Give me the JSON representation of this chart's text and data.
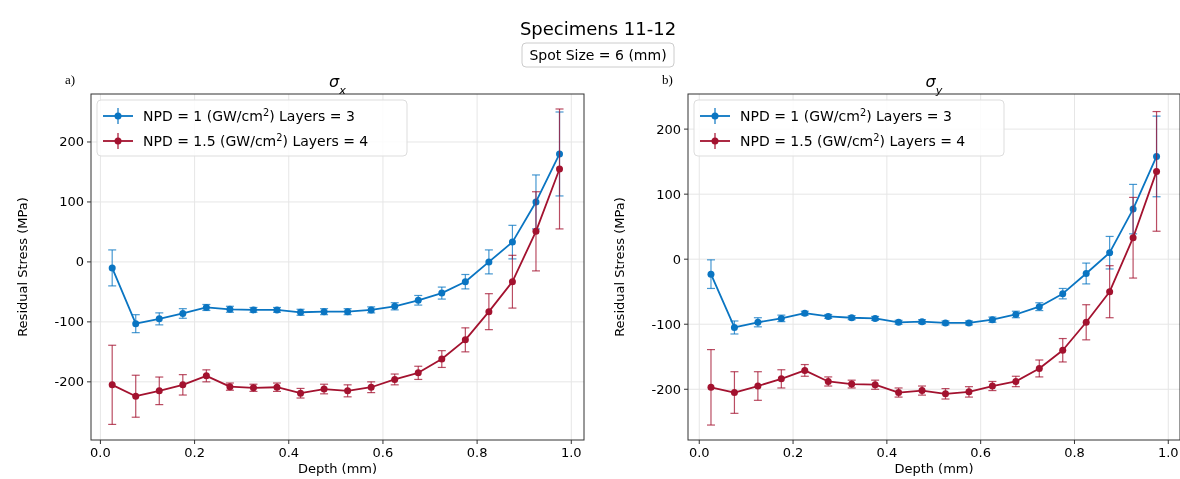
{
  "chart_data": [
    {
      "type": "line",
      "title": "σ$_{x}$",
      "annotations": [
        "Specimens 11-12",
        "Spot Size = 6 (mm)",
        "a)"
      ],
      "xlabel": "Depth (mm)",
      "ylabel": "Residual Stress (MPa)",
      "x": [
        0.025,
        0.075,
        0.125,
        0.175,
        0.225,
        0.275,
        0.325,
        0.375,
        0.425,
        0.475,
        0.525,
        0.575,
        0.625,
        0.675,
        0.725,
        0.775,
        0.825,
        0.875,
        0.925,
        0.975
      ],
      "xlim": [
        -0.02,
        1.027
      ],
      "ylim": [
        -297,
        280
      ],
      "xticks": [
        {
          "value": 0,
          "label": "0.0"
        },
        {
          "value": 0.2,
          "label": "0.2"
        },
        {
          "value": 0.4,
          "label": "0.4"
        },
        {
          "value": 0.6,
          "label": "0.6"
        },
        {
          "value": 0.8,
          "label": "0.8"
        },
        {
          "value": 1,
          "label": "1.0"
        }
      ],
      "yticks": [
        -200,
        -100,
        0,
        100,
        200
      ],
      "grid": true,
      "legend": "top left",
      "marker": "circle",
      "series": [
        {
          "name": "NPD = 1 (GW/cm$^{2}$) Layers = 3",
          "color": "#0a75c2",
          "values": [
            -10,
            -103,
            -95,
            -86,
            -76,
            -79,
            -80,
            -80,
            -84,
            -83,
            -83,
            -80,
            -74,
            -64,
            -52,
            -33,
            0,
            33,
            100,
            180
          ],
          "errors": [
            30,
            15,
            10,
            8,
            5,
            5,
            4,
            4,
            5,
            5,
            5,
            5,
            6,
            8,
            10,
            12,
            20,
            28,
            45,
            70
          ]
        },
        {
          "name": "NPD = 1.5 (GW/cm$^{2}$) Layers = 4",
          "color": "#a3122f",
          "values": [
            -205,
            -224,
            -215,
            -205,
            -190,
            -208,
            -210,
            -209,
            -219,
            -212,
            -215,
            -209,
            -196,
            -185,
            -162,
            -130,
            -83,
            -33,
            51,
            155
          ],
          "errors": [
            66,
            35,
            23,
            17,
            10,
            6,
            6,
            7,
            8,
            8,
            10,
            9,
            9,
            11,
            14,
            20,
            30,
            44,
            66,
            100
          ]
        }
      ]
    },
    {
      "type": "line",
      "title": "σ$_{y}$",
      "annotations": [
        "b)"
      ],
      "xlabel": "Depth (mm)",
      "ylabel": "Residual Stress (MPa)",
      "x": [
        0.025,
        0.075,
        0.125,
        0.175,
        0.225,
        0.275,
        0.325,
        0.375,
        0.425,
        0.475,
        0.525,
        0.575,
        0.625,
        0.675,
        0.725,
        0.775,
        0.825,
        0.875,
        0.925,
        0.975
      ],
      "xlim": [
        -0.024,
        1.025
      ],
      "ylim": [
        -278,
        254
      ],
      "xticks": [
        {
          "value": 0,
          "label": "0.0"
        },
        {
          "value": 0.2,
          "label": "0.2"
        },
        {
          "value": 0.4,
          "label": "0.4"
        },
        {
          "value": 0.6,
          "label": "0.6"
        },
        {
          "value": 0.8,
          "label": "0.8"
        },
        {
          "value": 1,
          "label": "1.0"
        }
      ],
      "yticks": [
        -200,
        -100,
        0,
        100,
        200
      ],
      "grid": true,
      "legend": "top left",
      "marker": "circle",
      "series": [
        {
          "name": "NPD = 1 (GW/cm$^{2}$) Layers = 3",
          "color": "#0a75c2",
          "values": [
            -23,
            -105,
            -97,
            -91,
            -83,
            -88,
            -90,
            -91,
            -97,
            -96,
            -98,
            -98,
            -93,
            -85,
            -73,
            -53,
            -22,
            10,
            77,
            158
          ],
          "errors": [
            22,
            10,
            7,
            5,
            3,
            3,
            3,
            3,
            3,
            3,
            3,
            3,
            4,
            5,
            6,
            8,
            16,
            25,
            38,
            62
          ]
        },
        {
          "name": "NPD = 1.5 (GW/cm$^{2}$) Layers = 4",
          "color": "#a3122f",
          "values": [
            -197,
            -205,
            -195,
            -184,
            -171,
            -188,
            -192,
            -193,
            -205,
            -202,
            -207,
            -204,
            -195,
            -188,
            -168,
            -140,
            -97,
            -50,
            33,
            135
          ],
          "errors": [
            58,
            32,
            22,
            14,
            9,
            7,
            6,
            7,
            7,
            7,
            8,
            8,
            7,
            8,
            13,
            18,
            27,
            40,
            62,
            92
          ]
        }
      ]
    }
  ]
}
